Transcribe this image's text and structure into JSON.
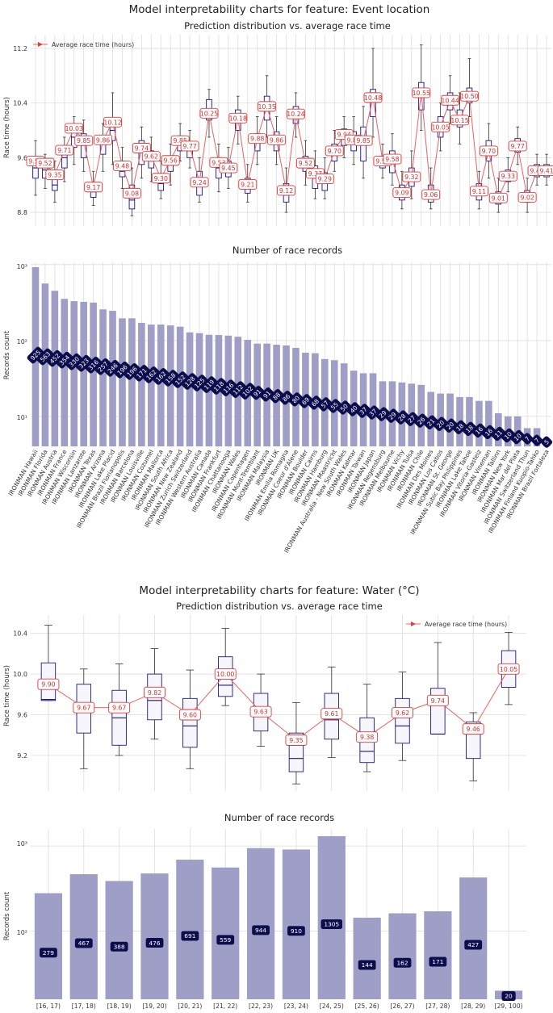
{
  "chart_data": [
    {
      "type": "box",
      "suptitle": "Model interpretability charts for feature: Event location",
      "title": "Prediction distribution vs. average race time",
      "ylabel": "Race time (hours)",
      "ylim": [
        8.6,
        11.4
      ],
      "yticks": [
        8.8,
        9.6,
        10.4,
        11.2
      ],
      "legend": "Average race time (hours)",
      "legend_position": "top-left",
      "averages": [
        9.55,
        9.52,
        9.35,
        9.71,
        10.03,
        9.85,
        9.17,
        9.86,
        10.12,
        9.48,
        9.08,
        9.74,
        9.62,
        9.3,
        9.56,
        9.85,
        9.77,
        9.24,
        10.25,
        9.53,
        9.45,
        10.18,
        9.21,
        9.88,
        10.35,
        9.86,
        9.12,
        10.24,
        9.52,
        9.37,
        9.29,
        9.7,
        9.94,
        9.86,
        9.85,
        10.48,
        9.55,
        9.58,
        9.09,
        9.32,
        10.55,
        9.06,
        10.05,
        10.44,
        10.15,
        10.5,
        9.11,
        9.7,
        9.01,
        9.33,
        9.77,
        9.02,
        9.41,
        9.41
      ],
      "boxes": [
        [
          9.05,
          9.3,
          9.45,
          9.6,
          9.85
        ],
        [
          9.15,
          9.3,
          9.42,
          9.5,
          9.65
        ],
        [
          8.95,
          9.12,
          9.2,
          9.38,
          9.55
        ],
        [
          9.25,
          9.45,
          9.6,
          9.72,
          9.9
        ],
        [
          9.5,
          9.75,
          9.9,
          10.02,
          10.2
        ],
        [
          9.4,
          9.6,
          9.78,
          9.95,
          10.15
        ],
        [
          8.9,
          9.02,
          9.1,
          9.22,
          9.4
        ],
        [
          9.4,
          9.65,
          9.8,
          9.92,
          10.1
        ],
        [
          9.5,
          9.85,
          10.0,
          10.15,
          10.55
        ],
        [
          9.15,
          9.32,
          9.4,
          9.55,
          9.75
        ],
        [
          8.75,
          8.85,
          8.98,
          9.2,
          9.45
        ],
        [
          9.3,
          9.5,
          9.68,
          9.85,
          10.05
        ],
        [
          9.25,
          9.45,
          9.55,
          9.7,
          9.9
        ],
        [
          9.0,
          9.12,
          9.22,
          9.35,
          9.55
        ],
        [
          9.2,
          9.4,
          9.5,
          9.62,
          9.8
        ],
        [
          9.55,
          9.7,
          9.8,
          9.92,
          10.1
        ],
        [
          9.45,
          9.6,
          9.7,
          9.82,
          10.0
        ],
        [
          8.95,
          9.05,
          9.2,
          9.4,
          9.6
        ],
        [
          9.9,
          10.15,
          10.25,
          10.45,
          10.6
        ],
        [
          9.1,
          9.3,
          9.45,
          9.6,
          9.8
        ],
        [
          9.15,
          9.32,
          9.42,
          9.55,
          9.75
        ],
        [
          9.8,
          10.0,
          10.15,
          10.3,
          10.5
        ],
        [
          8.95,
          9.08,
          9.18,
          9.3,
          9.5
        ],
        [
          9.5,
          9.7,
          9.82,
          9.95,
          10.2
        ],
        [
          9.9,
          10.15,
          10.3,
          10.5,
          10.8
        ],
        [
          9.5,
          9.7,
          9.85,
          9.98,
          10.2
        ],
        [
          8.8,
          8.95,
          9.05,
          9.22,
          9.45
        ],
        [
          9.9,
          10.1,
          10.2,
          10.35,
          10.55
        ],
        [
          9.2,
          9.4,
          9.5,
          9.62,
          9.85
        ],
        [
          9.0,
          9.15,
          9.3,
          9.48,
          9.7
        ],
        [
          9.0,
          9.12,
          9.22,
          9.38,
          9.6
        ],
        [
          9.4,
          9.55,
          9.68,
          9.8,
          10.0
        ],
        [
          9.6,
          9.78,
          9.9,
          10.02,
          10.2
        ],
        [
          9.5,
          9.7,
          9.85,
          9.98,
          10.2
        ],
        [
          9.3,
          9.55,
          9.8,
          10.05,
          10.35
        ],
        [
          9.9,
          10.2,
          10.45,
          10.6,
          11.2
        ],
        [
          9.3,
          9.45,
          9.5,
          9.62,
          9.8
        ],
        [
          9.2,
          9.38,
          9.55,
          9.7,
          9.95
        ],
        [
          8.85,
          8.98,
          9.08,
          9.2,
          9.4
        ],
        [
          9.0,
          9.18,
          9.3,
          9.45,
          9.7
        ],
        [
          10.0,
          10.3,
          10.5,
          10.7,
          11.25
        ],
        [
          8.85,
          8.95,
          9.05,
          9.2,
          9.45
        ],
        [
          9.7,
          9.9,
          10.05,
          10.2,
          10.4
        ],
        [
          10.1,
          10.3,
          10.42,
          10.55,
          10.8
        ],
        [
          9.8,
          10.05,
          10.15,
          10.3,
          10.55
        ],
        [
          10.2,
          10.4,
          10.5,
          10.62,
          11.05
        ],
        [
          8.85,
          8.98,
          9.1,
          9.22,
          9.4
        ],
        [
          9.3,
          9.55,
          9.7,
          9.85,
          10.1
        ],
        [
          8.8,
          8.92,
          9.0,
          9.1,
          9.3
        ],
        [
          9.1,
          9.25,
          9.32,
          9.42,
          9.6
        ],
        [
          9.5,
          9.68,
          9.78,
          9.88,
          10.05
        ],
        [
          8.8,
          8.95,
          9.02,
          9.12,
          9.3
        ],
        [
          9.2,
          9.32,
          9.4,
          9.5,
          9.65
        ],
        [
          9.2,
          9.32,
          9.42,
          9.5,
          9.65
        ]
      ]
    },
    {
      "type": "bar",
      "title": "Number of race records",
      "ylabel": "Records count",
      "yscale": "log",
      "yticks": [
        "10¹",
        "10²",
        "10³"
      ],
      "categories": [
        "IRONMAN Hawaii",
        "IRONMAN Florida",
        "IRONMAN Austria",
        "IRONMAN France",
        "IRONMAN Wisconsin",
        "IRONMAN Lanzarote",
        "IRONMAN Texas",
        "IRONMAN Arizona",
        "IRONMAN Lake Placid",
        "IRONMAN Brazil Florianopolis",
        "IRONMAN Barcelona",
        "IRONMAN Louisville",
        "IRONMAN Cozumel",
        "IRONMAN Mallorca",
        "IRONMAN South Africa",
        "IRONMAN New Zealand",
        "IRONMAN Zurich Switzerland",
        "IRONMAN Western Australia",
        "IRONMAN Canada",
        "IRONMAN Frankfurt",
        "IRONMAN Chattanooga",
        "IRONMAN Wales",
        "IRONMAN Copenhagen",
        "IRONMAN Mont-Tremblant",
        "IRONMAN Malaysia",
        "IRONMAN UK",
        "IRONMAN Emilia Romagna",
        "IRONMAN Coeur d'Alene",
        "IRONMAN Boulder",
        "IRONMAN Cairns",
        "IRONMAN Hamburg",
        "IRONMAN Maastricht",
        "IRONMAN Australia - New South Wales",
        "IRONMAN Kalmar",
        "IRONMAN Taiwan",
        "IRONMAN Japan",
        "IRONMAN Regensburg",
        "IRONMAN Melbourne",
        "IRONMAN Vichy",
        "IRONMAN Tulsa",
        "IRONMAN Chile",
        "IRONMAN Des Moines",
        "IRONMAN Los Cabos",
        "IRONMAN St. George",
        "IRONMAN Subic Bay Philippines",
        "IRONMAN Lake Tahoe",
        "IRONMAN Vitoria-Gasteiz",
        "IRONMAN Vineman",
        "IRONMAN Tallinn",
        "IRONMAN New York",
        "IRONMAN Mar del Plata",
        "IRONMAN Switzerland Thun",
        "IRONMAN Finland Kuopio-Tahko",
        "IRONMAN Brazil Fortaleza"
      ],
      "values": [
        925,
        563,
        452,
        354,
        330,
        323,
        316,
        257,
        246,
        196,
        196,
        171,
        162,
        162,
        158,
        152,
        128,
        125,
        119,
        118,
        116,
        112,
        102,
        91,
        91,
        88,
        86,
        80,
        69,
        68,
        57,
        55,
        50,
        40,
        37,
        37,
        29,
        29,
        28,
        27,
        26,
        21,
        20,
        20,
        18,
        18,
        16,
        16,
        11,
        10,
        10,
        7,
        7,
        5
      ]
    },
    {
      "type": "box",
      "suptitle": "Model interpretability charts for feature: Water (°C)",
      "title": "Prediction distribution vs. average race time",
      "ylabel": "Race time (hours)",
      "ylim": [
        8.85,
        10.58
      ],
      "yticks": [
        9.2,
        9.6,
        10.0,
        10.4
      ],
      "legend": "Average race time (hours)",
      "legend_position": "top-right",
      "averages": [
        9.9,
        9.67,
        9.67,
        9.82,
        9.6,
        10.0,
        9.63,
        9.35,
        9.61,
        9.38,
        9.62,
        9.74,
        9.46,
        10.05
      ],
      "boxes": [
        [
          9.74,
          9.74,
          9.75,
          10.11,
          10.48
        ],
        [
          9.07,
          9.42,
          9.67,
          9.9,
          10.05
        ],
        [
          9.2,
          9.3,
          9.57,
          9.84,
          10.1
        ],
        [
          9.36,
          9.55,
          9.74,
          10.0,
          10.25
        ],
        [
          9.07,
          9.28,
          9.49,
          9.76,
          10.04
        ],
        [
          9.69,
          9.78,
          9.89,
          10.17,
          10.45
        ],
        [
          9.29,
          9.44,
          9.61,
          9.81,
          10.0
        ],
        [
          8.92,
          9.04,
          9.17,
          9.42,
          9.72
        ],
        [
          9.18,
          9.36,
          9.55,
          9.81,
          10.07
        ],
        [
          9.04,
          9.13,
          9.24,
          9.57,
          9.9
        ],
        [
          9.15,
          9.32,
          9.49,
          9.76,
          10.02
        ],
        [
          9.41,
          9.41,
          9.41,
          9.86,
          10.31
        ],
        [
          8.95,
          9.17,
          9.41,
          9.53,
          9.62
        ],
        [
          9.7,
          9.87,
          10.05,
          10.23,
          10.41
        ]
      ]
    },
    {
      "type": "bar",
      "title": "Number of race records",
      "ylabel": "Records count",
      "yscale": "log",
      "yticks": [
        "10²",
        "10³"
      ],
      "categories": [
        "[16, 17)",
        "[17, 18)",
        "[18, 19)",
        "[19, 20)",
        "[20, 21)",
        "[21, 22)",
        "[22, 23)",
        "[23, 24)",
        "[24, 25)",
        "[25, 26)",
        "[26, 27)",
        "[27, 28)",
        "[28, 29)",
        "[29, 100)"
      ],
      "values": [
        279,
        467,
        388,
        476,
        691,
        559,
        944,
        910,
        1305,
        144,
        162,
        171,
        427,
        20
      ]
    }
  ]
}
